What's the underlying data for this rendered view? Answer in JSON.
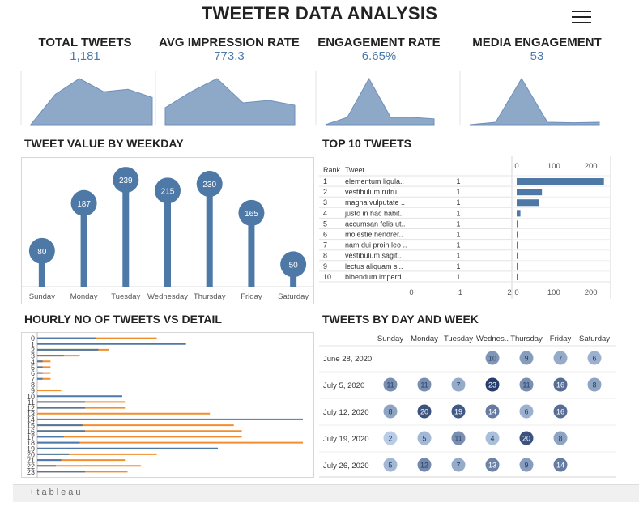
{
  "header": {
    "title": "TWEETER DATA ANALYSIS",
    "menu_icon": "hamburger-menu-icon"
  },
  "kpis": [
    {
      "label": "TOTAL TWEETS",
      "value": "1,181",
      "spark": [
        0.0,
        0.62,
        0.95,
        0.68,
        0.73,
        0.56
      ]
    },
    {
      "label": "AVG IMPRESSION RATE",
      "value": "773.3",
      "spark": [
        0.35,
        0.68,
        0.95,
        0.45,
        0.5,
        0.4
      ]
    },
    {
      "label": "ENGAGEMENT RATE",
      "value": "6.65%",
      "spark": [
        0.0,
        0.15,
        0.95,
        0.15,
        0.15,
        0.12
      ]
    },
    {
      "label": "MEDIA ENGAGEMENT",
      "value": "53",
      "spark": [
        0.0,
        0.05,
        0.95,
        0.05,
        0.04,
        0.05
      ]
    }
  ],
  "colors": {
    "blue": "#4e79a7",
    "orange": "#f28e2b",
    "spark_fill": "#8ea9c8"
  },
  "weekday_chart": {
    "title": "TWEET VALUE BY WEEKDAY",
    "days": [
      "Sunday",
      "Monday",
      "Tuesday",
      "Wednesday",
      "Thursday",
      "Friday",
      "Saturday"
    ],
    "values": [
      80,
      187,
      239,
      215,
      230,
      165,
      50
    ],
    "ymax": 250
  },
  "top10": {
    "title": "TOP 10 TWEETS",
    "col_rank": "Rank",
    "col_tweet": "Tweet",
    "rows": [
      {
        "rank": "1",
        "tweet": "elementum ligula..",
        "count": "1",
        "value": 235
      },
      {
        "rank": "2",
        "tweet": "vestibulum rutru..",
        "count": "1",
        "value": 68
      },
      {
        "rank": "3",
        "tweet": "magna vulputate ..",
        "count": "1",
        "value": 60
      },
      {
        "rank": "4",
        "tweet": "justo in hac habit..",
        "count": "1",
        "value": 10
      },
      {
        "rank": "5",
        "tweet": "accumsan felis ut..",
        "count": "1",
        "value": 4
      },
      {
        "rank": "6",
        "tweet": "molestie hendrer..",
        "count": "1",
        "value": 3
      },
      {
        "rank": "7",
        "tweet": "nam dui proin leo ..",
        "count": "1",
        "value": 3
      },
      {
        "rank": "8",
        "tweet": "vestibulum sagit..",
        "count": "1",
        "value": 3
      },
      {
        "rank": "9",
        "tweet": "lectus aliquam si..",
        "count": "1",
        "value": 2
      },
      {
        "rank": "10",
        "tweet": "bibendum imperd..",
        "count": "1",
        "value": 2
      }
    ],
    "count_axis_ticks": [
      "0",
      "1",
      "2"
    ],
    "value_axis_ticks": [
      "0",
      "100",
      "200"
    ],
    "value_axis_max": 240
  },
  "hourly": {
    "title": "HOURLY NO OF TWEETS VS DETAIL",
    "hours": [
      "0",
      "1",
      "2",
      "3",
      "4",
      "5",
      "6",
      "7",
      "8",
      "9",
      "10",
      "11",
      "12",
      "13",
      "14",
      "15",
      "16",
      "17",
      "18",
      "19",
      "20",
      "21",
      "22",
      "23"
    ],
    "blue": [
      0.22,
      0.56,
      0.23,
      0.1,
      0.02,
      0.02,
      0.02,
      0.02,
      0.0,
      0.0,
      0.32,
      0.18,
      0.18,
      0.0,
      1.0,
      0.17,
      0.18,
      0.1,
      0.16,
      0.68,
      0.12,
      0.09,
      0.07,
      0.18
    ],
    "orange": [
      0.45,
      0.0,
      0.27,
      0.16,
      0.05,
      0.05,
      0.05,
      0.05,
      0.0,
      0.09,
      0.0,
      0.33,
      0.33,
      0.65,
      0.0,
      0.74,
      0.77,
      0.77,
      1.0,
      0.0,
      0.45,
      0.33,
      0.39,
      0.34
    ]
  },
  "calendar": {
    "title": "TWEETS BY DAY AND WEEK",
    "days": [
      "Sunday",
      "Monday",
      "Tuesday",
      "Wednes..",
      "Thursday",
      "Friday",
      "Saturday"
    ],
    "weeks": [
      "June 28, 2020",
      "July 5, 2020",
      "July 12, 2020",
      "July 19, 2020",
      "July 26, 2020"
    ],
    "cells": [
      [
        null,
        null,
        null,
        10,
        9,
        7,
        6
      ],
      [
        11,
        11,
        7,
        23,
        11,
        16,
        8
      ],
      [
        8,
        20,
        19,
        14,
        6,
        16,
        null
      ],
      [
        2,
        5,
        11,
        4,
        20,
        8,
        null
      ],
      [
        5,
        12,
        7,
        13,
        9,
        14,
        null
      ]
    ]
  },
  "footer": {
    "brand": "+tableau"
  }
}
